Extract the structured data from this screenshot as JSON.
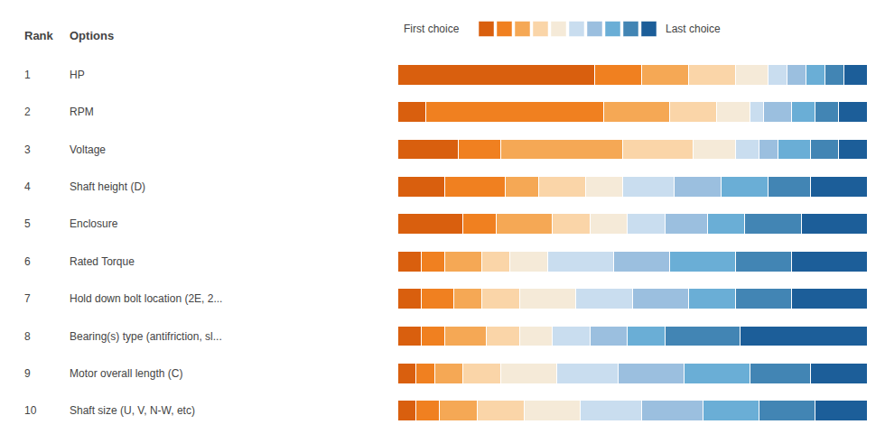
{
  "chart_data": {
    "type": "bar",
    "orientation": "horizontal",
    "stacked": true,
    "categories": [
      "HP",
      "RPM",
      "Voltage",
      "Shaft height (D)",
      "Enclosure",
      "Rated Torque",
      "Hold down bolt location (2E, 2...",
      "Bearing(s) type (antifriction, sl...",
      "Motor overall length (C)",
      "Shaft size (U, V, N-W, etc)"
    ],
    "ranks": [
      "1",
      "2",
      "3",
      "4",
      "5",
      "6",
      "7",
      "8",
      "9",
      "10"
    ],
    "annotations": [
      "Rank",
      "Options",
      "First choice",
      "Last choice"
    ],
    "series": [
      {
        "color": "#D95F0E",
        "values": [
          42,
          6,
          13,
          10,
          14,
          5,
          5,
          5,
          4,
          4
        ]
      },
      {
        "color": "#F08020",
        "values": [
          10,
          38,
          9,
          13,
          7,
          5,
          7,
          5,
          4,
          5
        ]
      },
      {
        "color": "#F5A855",
        "values": [
          10,
          14,
          26,
          7,
          12,
          8,
          6,
          9,
          6,
          8
        ]
      },
      {
        "color": "#FAD5A8",
        "values": [
          10,
          10,
          15,
          10,
          8,
          6,
          8,
          7,
          8,
          10
        ]
      },
      {
        "color": "#F5EAD8",
        "values": [
          7,
          7,
          9,
          8,
          8,
          8,
          12,
          7,
          12,
          12
        ]
      },
      {
        "color": "#C9DDEF",
        "values": [
          4,
          3,
          5,
          11,
          8,
          14,
          12,
          8,
          13,
          13
        ]
      },
      {
        "color": "#9BBFDF",
        "values": [
          4,
          6,
          4,
          10,
          9,
          12,
          12,
          8,
          14,
          13
        ]
      },
      {
        "color": "#6AAED6",
        "values": [
          4,
          5,
          7,
          10,
          8,
          14,
          10,
          8,
          14,
          12
        ]
      },
      {
        "color": "#4285B4",
        "values": [
          4,
          5,
          6,
          9,
          12,
          12,
          12,
          16,
          13,
          12
        ]
      },
      {
        "color": "#1C5E99",
        "values": [
          5,
          6,
          6,
          12,
          14,
          16,
          16,
          27,
          12,
          11
        ]
      }
    ],
    "xlim": [
      0,
      100
    ],
    "tick_labels": false,
    "grid": false
  }
}
